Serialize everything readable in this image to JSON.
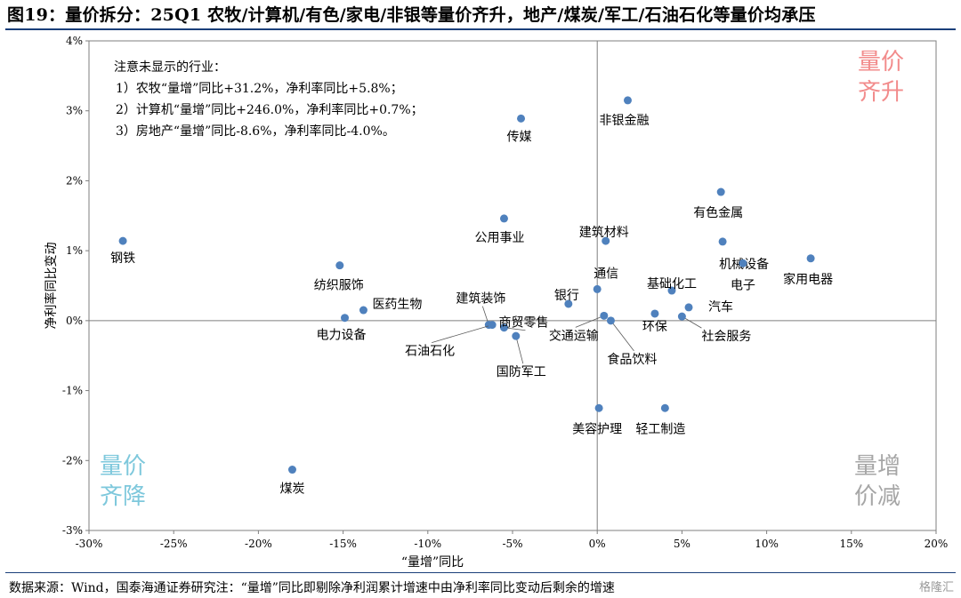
{
  "title": "图19：量价拆分：25Q1 农牧/计算机/有色/家电/非银等量价齐升，地产/煤炭/军工/石油石化等量价均承压",
  "source": "数据来源：Wind，国泰海通证券研究注：“量增”同比即剔除净利润累计增速中由净利率同比变动后剩余的增速",
  "watermark": "格隆汇",
  "chart_data": {
    "type": "scatter",
    "title": "",
    "xlabel": "“量增”同比",
    "ylabel": "净利率同比变动",
    "xlim": [
      -30,
      20
    ],
    "ylim": [
      -3,
      4
    ],
    "x_ticks": [
      -30,
      -25,
      -20,
      -15,
      -10,
      -5,
      0,
      5,
      10,
      15,
      20
    ],
    "y_ticks": [
      -3,
      -2,
      -1,
      0,
      1,
      2,
      3,
      4
    ],
    "x_tick_labels": [
      "-30%",
      "-25%",
      "-20%",
      "-15%",
      "-10%",
      "-5%",
      "0%",
      "5%",
      "10%",
      "15%",
      "20%"
    ],
    "y_tick_labels": [
      "-3%",
      "-2%",
      "-1%",
      "0%",
      "1%",
      "2%",
      "3%",
      "4%"
    ],
    "grid": false,
    "point_color": "#4f81bd",
    "quadrant_labels": {
      "top_right": [
        "量价",
        "齐升"
      ],
      "bottom_left": [
        "量价",
        "齐降"
      ],
      "bottom_right": [
        "量增",
        "价减"
      ]
    },
    "quadrant_colors": {
      "top_right": "#f28b8b",
      "bottom_left": "#7ec8dc",
      "bottom_right": "#a6a6a6"
    },
    "note_lines": [
      "注意未显示的行业：",
      "1）农牧“量增”同比+31.2%，净利率同比+5.8%；",
      "2）计算机“量增”同比+246.0%，净利率同比+0.7%；",
      "3）房地产“量增”同比-8.6%，净利率同比-4.0%。"
    ],
    "points": [
      {
        "label": "钢铁",
        "x": -28.0,
        "y": 1.14
      },
      {
        "label": "煤炭",
        "x": -18.0,
        "y": -2.13
      },
      {
        "label": "纺织服饰",
        "x": -15.2,
        "y": 0.79
      },
      {
        "label": "医药生物",
        "x": -13.8,
        "y": 0.15
      },
      {
        "label": "电力设备",
        "x": -14.9,
        "y": 0.04
      },
      {
        "label": "传媒",
        "x": -4.5,
        "y": 2.89
      },
      {
        "label": "公用事业",
        "x": -5.5,
        "y": 1.46
      },
      {
        "label": "建筑装饰",
        "x": -6.4,
        "y": -0.06
      },
      {
        "label": "石油石化",
        "x": -6.2,
        "y": -0.06
      },
      {
        "label": "商贸零售",
        "x": -5.5,
        "y": -0.1
      },
      {
        "label": "国防军工",
        "x": -4.8,
        "y": -0.22
      },
      {
        "label": "银行",
        "x": -1.7,
        "y": 0.24
      },
      {
        "label": "通信",
        "x": 0.0,
        "y": 0.45
      },
      {
        "label": "交通运输",
        "x": 0.4,
        "y": 0.07
      },
      {
        "label": "食品饮料",
        "x": 0.8,
        "y": 0.0
      },
      {
        "label": "非银金融",
        "x": 1.8,
        "y": 3.15
      },
      {
        "label": "建筑材料",
        "x": 0.5,
        "y": 1.14
      },
      {
        "label": "美容护理",
        "x": 0.1,
        "y": -1.25
      },
      {
        "label": "轻工制造",
        "x": 4.0,
        "y": -1.25
      },
      {
        "label": "环保",
        "x": 3.4,
        "y": 0.1
      },
      {
        "label": "基础化工",
        "x": 4.4,
        "y": 0.43
      },
      {
        "label": "汽车",
        "x": 5.4,
        "y": 0.19
      },
      {
        "label": "社会服务",
        "x": 5.0,
        "y": 0.06
      },
      {
        "label": "有色金属",
        "x": 7.3,
        "y": 1.84
      },
      {
        "label": "机械设备",
        "x": 7.4,
        "y": 1.13
      },
      {
        "label": "电子",
        "x": 8.6,
        "y": 0.82
      },
      {
        "label": "家用电器",
        "x": 12.6,
        "y": 0.89
      }
    ]
  }
}
